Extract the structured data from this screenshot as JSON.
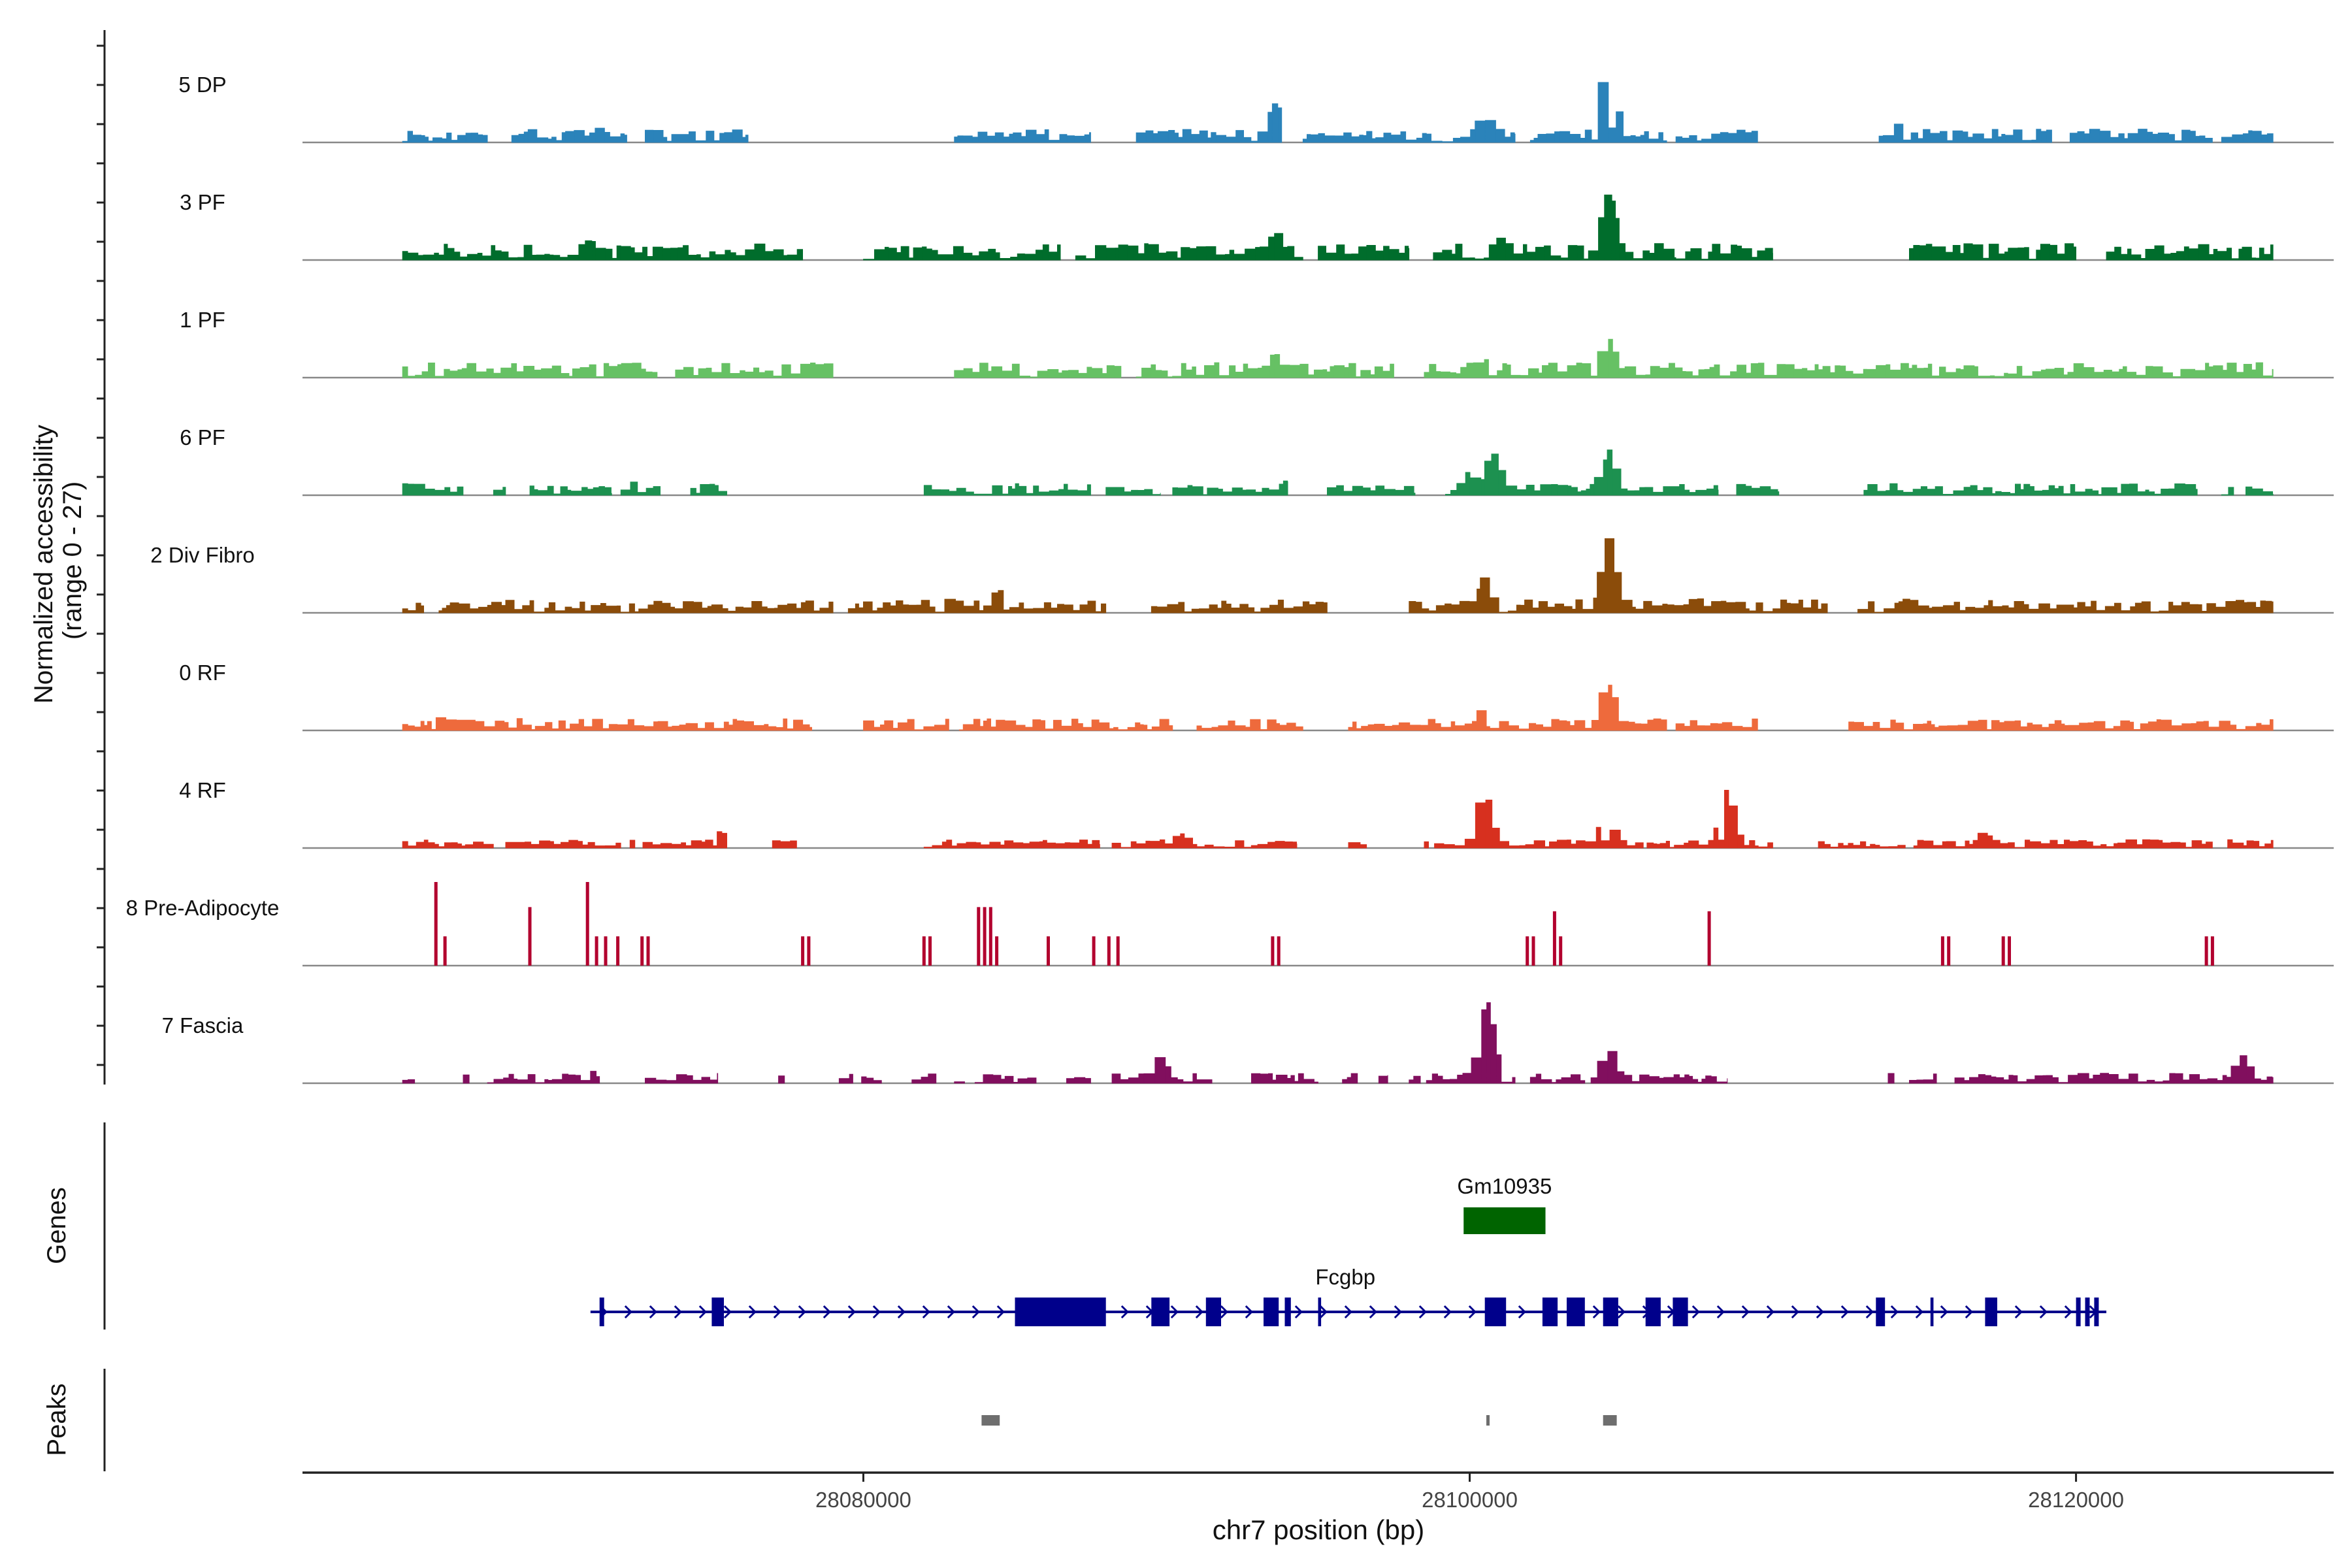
{
  "chart_data": {
    "type": "area",
    "title": "",
    "ylabel_line1": "Normalized accessibility",
    "ylabel_line2": "(range 0 - 27)",
    "ylim": [
      0,
      27
    ],
    "xlabel": "chr7 position (bp)",
    "xlim": [
      28061500,
      28128500
    ],
    "x_ticks": [
      {
        "value": 28080000,
        "label": "28080000"
      },
      {
        "value": 28100000,
        "label": "28100000"
      },
      {
        "value": 28120000,
        "label": "28120000"
      }
    ],
    "series": [
      {
        "name": "5 DP",
        "color": "#2b83ba",
        "seed": 11,
        "bg": 0.16,
        "segments": [
          [
            28064800,
            28067600
          ],
          [
            28068400,
            28072200
          ],
          [
            28072800,
            28076200
          ],
          [
            28083000,
            28087500
          ],
          [
            28089000,
            28093800
          ],
          [
            28094500,
            28101500
          ],
          [
            28102000,
            28106500
          ],
          [
            28106800,
            28109500
          ],
          [
            28113500,
            28119200
          ],
          [
            28119800,
            28124500
          ],
          [
            28124800,
            28126500
          ]
        ],
        "peaks": [
          [
            28104600,
            1.0
          ],
          [
            28093600,
            0.5
          ],
          [
            28100500,
            0.35
          ],
          [
            28071300,
            0.2
          ],
          [
            28114200,
            0.25
          ],
          [
            28103000,
            0.15
          ]
        ]
      },
      {
        "name": "3 PF",
        "color": "#006d2c",
        "seed": 23,
        "bg": 0.2,
        "segments": [
          [
            28064800,
            28078000
          ],
          [
            28080000,
            28086500
          ],
          [
            28087000,
            28094500
          ],
          [
            28095000,
            28098000
          ],
          [
            28098800,
            28106800
          ],
          [
            28106800,
            28110000
          ],
          [
            28114500,
            28120000
          ],
          [
            28121000,
            28126500
          ]
        ],
        "peaks": [
          [
            28104600,
            0.9
          ],
          [
            28093600,
            0.35
          ],
          [
            28101000,
            0.3
          ],
          [
            28071000,
            0.28
          ],
          [
            28073000,
            0.25
          ],
          [
            28086000,
            0.18
          ]
        ]
      },
      {
        "name": "1 PF",
        "color": "#66c164",
        "seed": 37,
        "bg": 0.18,
        "segments": [
          [
            28064800,
            28073200
          ],
          [
            28073800,
            28079000
          ],
          [
            28083000,
            28088500
          ],
          [
            28089000,
            28097500
          ],
          [
            28098500,
            28126500
          ]
        ],
        "peaks": [
          [
            28104600,
            0.5
          ],
          [
            28093600,
            0.3
          ],
          [
            28100500,
            0.25
          ],
          [
            28105800,
            0.2
          ]
        ]
      },
      {
        "name": "6 PF",
        "color": "#1d9150",
        "seed": 41,
        "bg": 0.14,
        "segments": [
          [
            28064800,
            28066800
          ],
          [
            28067800,
            28068200
          ],
          [
            28069000,
            28071700
          ],
          [
            28072000,
            28073300
          ],
          [
            28074300,
            28075500
          ],
          [
            28082000,
            28087500
          ],
          [
            28088000,
            28089800
          ],
          [
            28090200,
            28094000
          ],
          [
            28095300,
            28098200
          ],
          [
            28099200,
            28108200
          ],
          [
            28108800,
            28110200
          ],
          [
            28113000,
            28124000
          ],
          [
            28124800,
            28125200
          ],
          [
            28125600,
            28126500
          ]
        ],
        "peaks": [
          [
            28104600,
            0.55
          ],
          [
            28100800,
            0.55
          ],
          [
            28100000,
            0.3
          ],
          [
            28094000,
            0.18
          ],
          [
            28072600,
            0.22
          ]
        ]
      },
      {
        "name": "2 Div Fibro",
        "color": "#8b4c0a",
        "seed": 53,
        "bg": 0.16,
        "segments": [
          [
            28064800,
            28065500
          ],
          [
            28066000,
            28079000
          ],
          [
            28079500,
            28088000
          ],
          [
            28089500,
            28095300
          ],
          [
            28098000,
            28111800
          ],
          [
            28112800,
            28126500
          ]
        ],
        "peaks": [
          [
            28104600,
            0.9
          ],
          [
            28100500,
            0.42
          ],
          [
            28084500,
            0.3
          ],
          [
            28083000,
            0.2
          ],
          [
            28107500,
            0.2
          ],
          [
            28114500,
            0.2
          ]
        ]
      },
      {
        "name": "0 RF",
        "color": "#ee6a3c",
        "seed": 67,
        "bg": 0.14,
        "segments": [
          [
            28064800,
            28078300
          ],
          [
            28080000,
            28090200
          ],
          [
            28091000,
            28094500
          ],
          [
            28096000,
            28106500
          ],
          [
            28106800,
            28109500
          ],
          [
            28112500,
            28126500
          ]
        ],
        "peaks": [
          [
            28104600,
            0.6
          ],
          [
            28100500,
            0.3
          ],
          [
            28066200,
            0.2
          ],
          [
            28068500,
            0.18
          ],
          [
            28075300,
            0.15
          ],
          [
            28116800,
            0.15
          ]
        ]
      },
      {
        "name": "4 RF",
        "color": "#d7301f",
        "seed": 71,
        "bg": 0.1,
        "segments": [
          [
            28064800,
            28067800
          ],
          [
            28068200,
            28072000
          ],
          [
            28072300,
            28075500
          ],
          [
            28077000,
            28077800
          ],
          [
            28082000,
            28087800
          ],
          [
            28088200,
            28094300
          ],
          [
            28096000,
            28096600
          ],
          [
            28098500,
            28110000
          ],
          [
            28111500,
            28124500
          ],
          [
            28125000,
            28126500
          ]
        ],
        "peaks": [
          [
            28108500,
            0.75
          ],
          [
            28100500,
            0.68
          ],
          [
            28104500,
            0.45
          ],
          [
            28075300,
            0.2
          ],
          [
            28090500,
            0.2
          ],
          [
            28117000,
            0.2
          ]
        ]
      },
      {
        "name": "8 Pre-Adipocyte",
        "color": "#b2002e",
        "seed": 83,
        "bg": 0,
        "segments": [],
        "peaks": [],
        "spikes": [
          [
            28065900,
            1.0
          ],
          [
            28066200,
            0.35
          ],
          [
            28069000,
            0.7
          ],
          [
            28070900,
            1.0
          ],
          [
            28071200,
            0.35
          ],
          [
            28071500,
            0.35
          ],
          [
            28071900,
            0.35
          ],
          [
            28072700,
            0.35
          ],
          [
            28072900,
            0.35
          ],
          [
            28078000,
            0.35
          ],
          [
            28078200,
            0.35
          ],
          [
            28082000,
            0.35
          ],
          [
            28082200,
            0.35
          ],
          [
            28083800,
            0.7
          ],
          [
            28084000,
            0.7
          ],
          [
            28084200,
            0.7
          ],
          [
            28084400,
            0.35
          ],
          [
            28086100,
            0.35
          ],
          [
            28087600,
            0.35
          ],
          [
            28088100,
            0.35
          ],
          [
            28088400,
            0.35
          ],
          [
            28093500,
            0.35
          ],
          [
            28093700,
            0.35
          ],
          [
            28101900,
            0.35
          ],
          [
            28102100,
            0.35
          ],
          [
            28102800,
            0.65
          ],
          [
            28103000,
            0.35
          ],
          [
            28107900,
            0.65
          ],
          [
            28115600,
            0.35
          ],
          [
            28115800,
            0.35
          ],
          [
            28117600,
            0.35
          ],
          [
            28117800,
            0.35
          ],
          [
            28124300,
            0.35
          ],
          [
            28124500,
            0.35
          ]
        ]
      },
      {
        "name": "7 Fascia",
        "color": "#810f5e",
        "seed": 97,
        "bg": 0.12,
        "segments": [
          [
            28064800,
            28065200
          ],
          [
            28066800,
            28067000
          ],
          [
            28067600,
            28071300
          ],
          [
            28072800,
            28075200
          ],
          [
            28077200,
            28077400
          ],
          [
            28079200,
            28080600
          ],
          [
            28081600,
            28082400
          ],
          [
            28083000,
            28085700
          ],
          [
            28086700,
            28087500
          ],
          [
            28088200,
            28091500
          ],
          [
            28092800,
            28095000
          ],
          [
            28095800,
            28096300
          ],
          [
            28097000,
            28097300
          ],
          [
            28098000,
            28101500
          ],
          [
            28102000,
            28103800
          ],
          [
            28104000,
            28108500
          ],
          [
            28113800,
            28114000
          ],
          [
            28114500,
            28115400
          ],
          [
            28116000,
            28126500
          ]
        ],
        "peaks": [
          [
            28100600,
            1.0
          ],
          [
            28104600,
            0.42
          ],
          [
            28089800,
            0.35
          ],
          [
            28070900,
            0.2
          ],
          [
            28125500,
            0.35
          ]
        ]
      }
    ],
    "genes_label": "Genes",
    "genes": [
      {
        "name": "Gm10935",
        "color": "#006400",
        "start": 28099800,
        "end": 28102500,
        "track": "top"
      },
      {
        "name": "Fcgbp",
        "color": "#00008b",
        "start": 28071000,
        "end": 28121000,
        "track": "bottom",
        "exons": [
          [
            28071300,
            28071450
          ],
          [
            28075000,
            28075400
          ],
          [
            28085000,
            28088000
          ],
          [
            28089500,
            28090100
          ],
          [
            28091300,
            28091800
          ],
          [
            28093200,
            28093700
          ],
          [
            28093900,
            28094100
          ],
          [
            28095000,
            28095100
          ],
          [
            28100500,
            28101200
          ],
          [
            28102400,
            28102900
          ],
          [
            28103200,
            28103800
          ],
          [
            28104400,
            28104900
          ],
          [
            28105800,
            28106300
          ],
          [
            28106700,
            28107200
          ],
          [
            28113400,
            28113700
          ],
          [
            28115200,
            28115300
          ],
          [
            28117000,
            28117400
          ],
          [
            28120000,
            28120150
          ],
          [
            28120300,
            28120450
          ],
          [
            28120600,
            28120750
          ]
        ]
      }
    ],
    "peaks_label": "Peaks",
    "peak_regions": [
      [
        28083900,
        28084500
      ],
      [
        28100550,
        28100650
      ],
      [
        28104400,
        28104850
      ]
    ]
  }
}
